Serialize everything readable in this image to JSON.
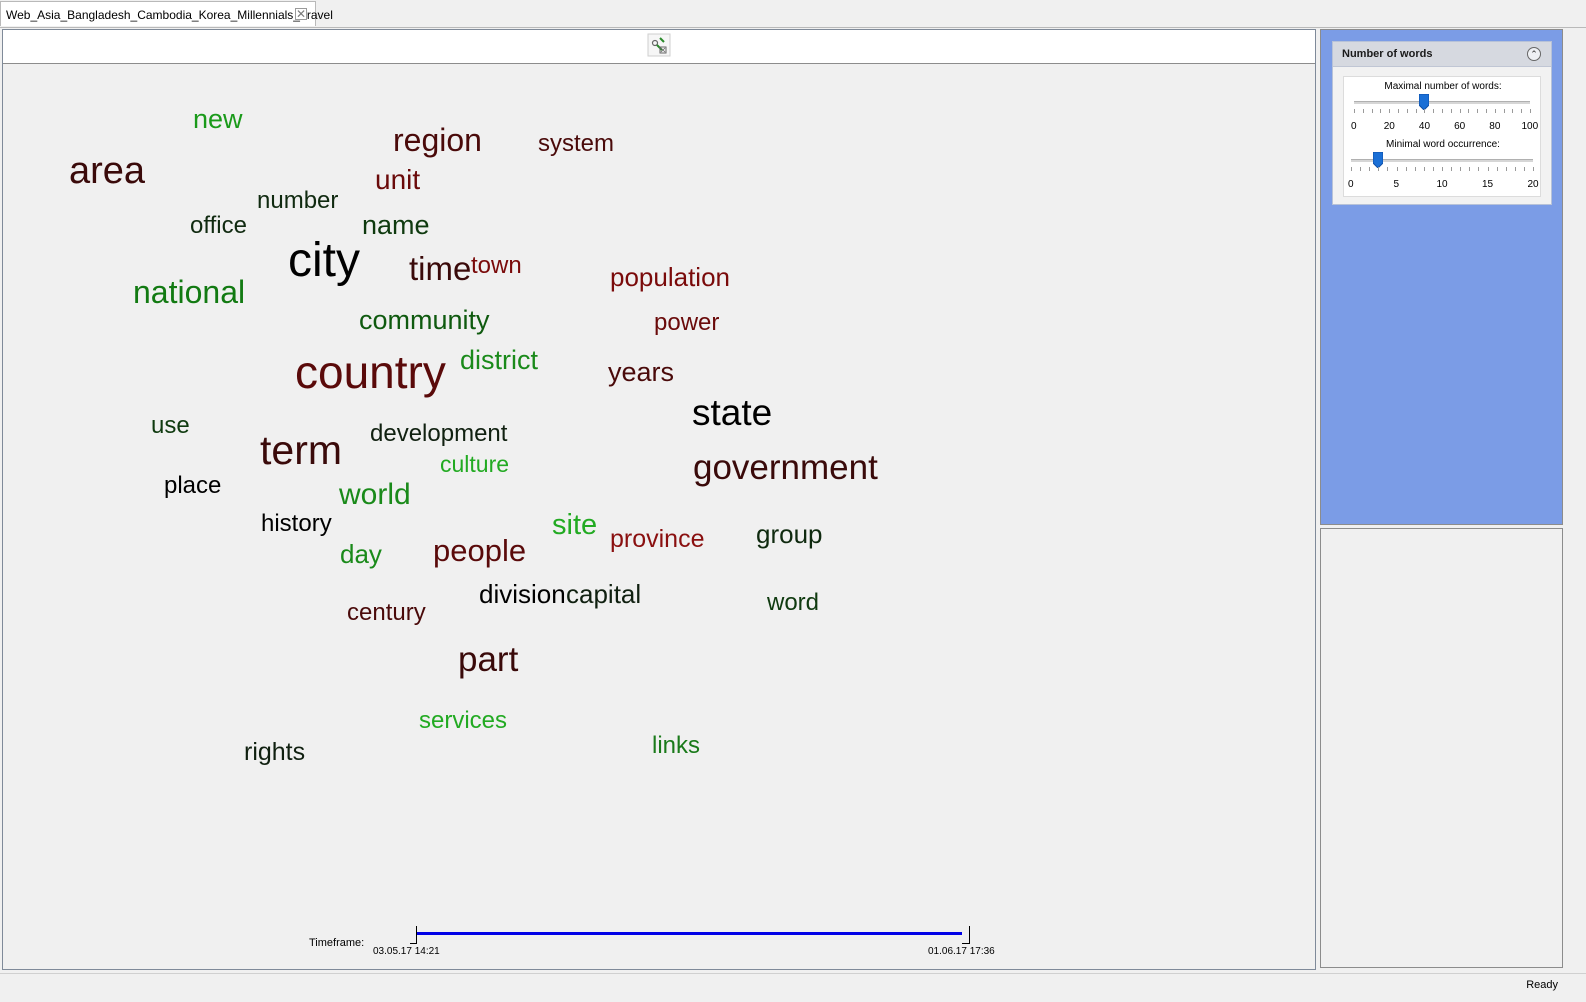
{
  "tab": {
    "title": "Web_Asia_Bangladesh_Cambodia_Korea_Millennials_Travel",
    "close_glyph": "✕"
  },
  "toolbar": {
    "tool_icon": "wordcloud-settings-icon"
  },
  "cloud": {
    "words": [
      {
        "text": "new",
        "color": "#1a9a1a"
      },
      {
        "text": "region",
        "color": "#4a0a0a"
      },
      {
        "text": "system",
        "color": "#4a0a0a"
      },
      {
        "text": "area",
        "color": "#3a0a0a"
      },
      {
        "text": "unit",
        "color": "#6a0a0a"
      },
      {
        "text": "number",
        "color": "#102a10"
      },
      {
        "text": "office",
        "color": "#102a10"
      },
      {
        "text": "name",
        "color": "#0f3a0f"
      },
      {
        "text": "city",
        "color": "#000000"
      },
      {
        "text": "time",
        "color": "#3a0a0a"
      },
      {
        "text": "town",
        "color": "#7a0a0a"
      },
      {
        "text": "population",
        "color": "#7a0a0a"
      },
      {
        "text": "national",
        "color": "#127a12"
      },
      {
        "text": "community",
        "color": "#0f5a0f"
      },
      {
        "text": "power",
        "color": "#6a0a0a"
      },
      {
        "text": "country",
        "color": "#5a0a0a"
      },
      {
        "text": "district",
        "color": "#1a8a1a"
      },
      {
        "text": "years",
        "color": "#4a0a0a"
      },
      {
        "text": "state",
        "color": "#000000"
      },
      {
        "text": "use",
        "color": "#0f3a0f"
      },
      {
        "text": "development",
        "color": "#102010"
      },
      {
        "text": "term",
        "color": "#3a0a0a"
      },
      {
        "text": "culture",
        "color": "#22aa22"
      },
      {
        "text": "government",
        "color": "#3a0a0a"
      },
      {
        "text": "place",
        "color": "#000000"
      },
      {
        "text": "world",
        "color": "#1a8a1a"
      },
      {
        "text": "history",
        "color": "#000000"
      },
      {
        "text": "site",
        "color": "#22aa22"
      },
      {
        "text": "province",
        "color": "#8a1010"
      },
      {
        "text": "group",
        "color": "#0f2a0f"
      },
      {
        "text": "day",
        "color": "#1a8a1a"
      },
      {
        "text": "people",
        "color": "#5a0a0a"
      },
      {
        "text": "division",
        "color": "#000000"
      },
      {
        "text": "capital",
        "color": "#102010"
      },
      {
        "text": "century",
        "color": "#4a0a0a"
      },
      {
        "text": "word",
        "color": "#0f3a0f"
      },
      {
        "text": "part",
        "color": "#3a0a0a"
      },
      {
        "text": "services",
        "color": "#22aa22"
      },
      {
        "text": "rights",
        "color": "#102010"
      },
      {
        "text": "links",
        "color": "#1a7a1a"
      }
    ]
  },
  "timeframe": {
    "label": "Timeframe:",
    "start": "03.05.17 14:21",
    "end": "01.06.17 17:36"
  },
  "panel": {
    "title": "Number of words",
    "collapse_icon": "collapse-up-icon",
    "max_words": {
      "label": "Maximal number of words:",
      "value": 40,
      "min": 0,
      "max": 100,
      "tick_labels": [
        "0",
        "20",
        "40",
        "60",
        "80",
        "100"
      ]
    },
    "min_occurrence": {
      "label": "Minimal word occurrence:",
      "value": 3,
      "min": 0,
      "max": 20,
      "tick_labels": [
        "0",
        "5",
        "10",
        "15",
        "20"
      ]
    }
  },
  "status": {
    "text": "Ready"
  }
}
